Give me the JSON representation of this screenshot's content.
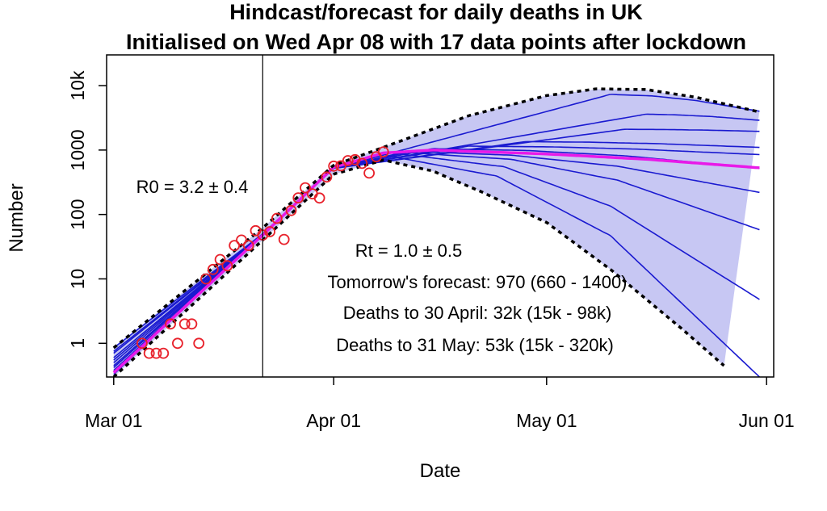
{
  "chart_data": {
    "type": "line",
    "title": "Hindcast/forecast for daily deaths in UK",
    "subtitle": "Initialised on Wed Apr 08 with 17 data points after lockdown",
    "xlabel": "Date",
    "ylabel": "Number",
    "y_scale": "log",
    "x_range": [
      "2020-02-29",
      "2020-06-02"
    ],
    "ylim": [
      0.3,
      30000
    ],
    "x_ticks": [
      {
        "date": "2020-03-01",
        "label": "Mar 01"
      },
      {
        "date": "2020-04-01",
        "label": "Apr 01"
      },
      {
        "date": "2020-05-01",
        "label": "May 01"
      },
      {
        "date": "2020-06-01",
        "label": "Jun 01"
      }
    ],
    "y_ticks": [
      {
        "value": 1,
        "label": "1"
      },
      {
        "value": 10,
        "label": "10"
      },
      {
        "value": 100,
        "label": "100"
      },
      {
        "value": 1000,
        "label": "1000"
      },
      {
        "value": 10000,
        "label": "10k"
      }
    ],
    "lockdown_line_date": "2020-03-22",
    "annotations": {
      "r0": "R0 = 3.2 ± 0.4",
      "rt": "Rt = 1.0 ± 0.5",
      "tomorrow": "Tomorrow's forecast: 970 (660 - 1400)",
      "april": "Deaths to 30 April: 32k (15k - 98k)",
      "may": "Deaths to 31 May: 53k (15k - 320k)"
    },
    "observed": {
      "marker": "open-circle",
      "color": "#e8212b",
      "points": [
        [
          "2020-03-05",
          1
        ],
        [
          "2020-03-06",
          0.7
        ],
        [
          "2020-03-07",
          0.7
        ],
        [
          "2020-03-08",
          0.7
        ],
        [
          "2020-03-09",
          2
        ],
        [
          "2020-03-10",
          1
        ],
        [
          "2020-03-11",
          2
        ],
        [
          "2020-03-12",
          2
        ],
        [
          "2020-03-13",
          1
        ],
        [
          "2020-03-14",
          10
        ],
        [
          "2020-03-15",
          14
        ],
        [
          "2020-03-16",
          20
        ],
        [
          "2020-03-17",
          16
        ],
        [
          "2020-03-18",
          33
        ],
        [
          "2020-03-19",
          40
        ],
        [
          "2020-03-20",
          33
        ],
        [
          "2020-03-21",
          56
        ],
        [
          "2020-03-22",
          48
        ],
        [
          "2020-03-23",
          54
        ],
        [
          "2020-03-24",
          87
        ],
        [
          "2020-03-25",
          41
        ],
        [
          "2020-03-26",
          115
        ],
        [
          "2020-03-27",
          181
        ],
        [
          "2020-03-28",
          260
        ],
        [
          "2020-03-29",
          209
        ],
        [
          "2020-03-30",
          180
        ],
        [
          "2020-03-31",
          381
        ],
        [
          "2020-04-01",
          563
        ],
        [
          "2020-04-02",
          569
        ],
        [
          "2020-04-03",
          684
        ],
        [
          "2020-04-04",
          708
        ],
        [
          "2020-04-05",
          621
        ],
        [
          "2020-04-06",
          439
        ],
        [
          "2020-04-07",
          786
        ],
        [
          "2020-04-08",
          938
        ]
      ]
    },
    "band": {
      "color": "#c7c7f3",
      "upper": [
        [
          "2020-03-01",
          0.85
        ],
        [
          "2020-03-22",
          62
        ],
        [
          "2020-04-01",
          580
        ],
        [
          "2020-04-08",
          1100
        ],
        [
          "2020-04-20",
          3400
        ],
        [
          "2020-05-01",
          7000
        ],
        [
          "2020-05-08",
          8800
        ],
        [
          "2020-05-15",
          8600
        ],
        [
          "2020-05-22",
          6500
        ],
        [
          "2020-05-31",
          4000
        ]
      ],
      "lower": [
        [
          "2020-03-01",
          0.3
        ],
        [
          "2020-03-22",
          40
        ],
        [
          "2020-04-01",
          420
        ],
        [
          "2020-04-08",
          700
        ],
        [
          "2020-04-15",
          470
        ],
        [
          "2020-04-22",
          220
        ],
        [
          "2020-05-01",
          75
        ],
        [
          "2020-05-10",
          14
        ],
        [
          "2020-05-20",
          1.7
        ],
        [
          "2020-05-26",
          0.45
        ]
      ]
    },
    "bound_lines": {
      "style": "dashed",
      "color": "#000000",
      "upper": [
        [
          "2020-03-01",
          0.85
        ],
        [
          "2020-03-22",
          62
        ],
        [
          "2020-04-01",
          580
        ],
        [
          "2020-04-08",
          1100
        ],
        [
          "2020-04-20",
          3400
        ],
        [
          "2020-05-01",
          7000
        ],
        [
          "2020-05-08",
          8900
        ],
        [
          "2020-05-15",
          8700
        ],
        [
          "2020-05-22",
          6600
        ],
        [
          "2020-05-31",
          3900
        ]
      ],
      "lower": [
        [
          "2020-03-01",
          0.3
        ],
        [
          "2020-03-22",
          40
        ],
        [
          "2020-04-01",
          420
        ],
        [
          "2020-04-08",
          700
        ],
        [
          "2020-04-15",
          470
        ],
        [
          "2020-04-22",
          220
        ],
        [
          "2020-05-01",
          75
        ],
        [
          "2020-05-10",
          14
        ],
        [
          "2020-05-20",
          1.7
        ],
        [
          "2020-05-26",
          0.45
        ]
      ]
    },
    "ensemble": {
      "color": "#1a1ad0",
      "members": [
        {
          "start": 0.85,
          "peak_date": "2020-05-10",
          "peak": 7300,
          "end": 4000
        },
        {
          "start": 0.75,
          "peak_date": "2020-05-15",
          "peak": 3600,
          "end": 2900
        },
        {
          "start": 0.7,
          "peak_date": "2020-05-12",
          "peak": 2100,
          "end": 1950
        },
        {
          "start": 0.6,
          "peak_date": "2020-04-28",
          "peak": 1350,
          "end": 1100
        },
        {
          "start": 0.55,
          "peak_date": "2020-04-20",
          "peak": 1150,
          "end": 850
        },
        {
          "start": 0.5,
          "peak_date": "2020-04-15",
          "peak": 1050,
          "end": 520
        },
        {
          "start": 0.45,
          "peak_date": "2020-04-12",
          "peak": 950,
          "end": 220
        },
        {
          "start": 0.42,
          "peak_date": "2020-04-11",
          "peak": 920,
          "end": 58
        },
        {
          "start": 0.38,
          "peak_date": "2020-04-10",
          "peak": 880,
          "end": 4.8
        },
        {
          "start": 0.33,
          "peak_date": "2020-04-09",
          "peak": 800,
          "end": 0.3
        }
      ]
    },
    "median": {
      "color": "#e81ae8",
      "points": [
        [
          "2020-03-01",
          0.35
        ],
        [
          "2020-03-22",
          48
        ],
        [
          "2020-04-01",
          540
        ],
        [
          "2020-04-08",
          900
        ],
        [
          "2020-04-15",
          1000
        ],
        [
          "2020-05-01",
          870
        ],
        [
          "2020-05-15",
          720
        ],
        [
          "2020-05-31",
          530
        ]
      ]
    }
  }
}
